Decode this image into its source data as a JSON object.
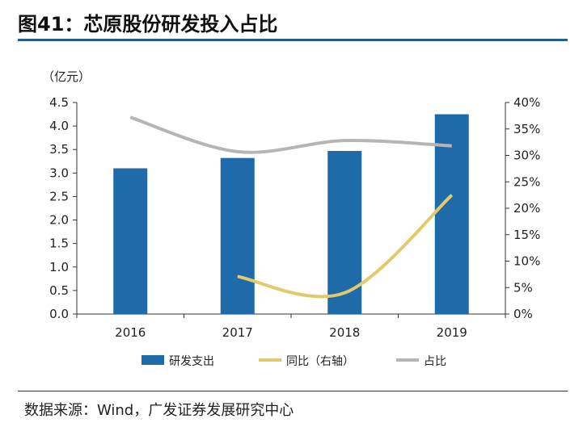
{
  "title": "图41：芯原股份研发投入占比",
  "source": "数据来源：Wind，广发证券发展研究中心",
  "colors": {
    "bar": "#1f6aa8",
    "yoy": "#e2c96a",
    "ratio": "#b5b5b5",
    "title_rule": "#1f5e8f"
  },
  "chart_data": {
    "type": "bar",
    "unit_label": "（亿元）",
    "categories": [
      "2016",
      "2017",
      "2018",
      "2019"
    ],
    "left_axis": {
      "ylim": [
        0,
        4.5
      ],
      "ticks": [
        "0.0",
        "0.5",
        "1.0",
        "1.5",
        "2.0",
        "2.5",
        "3.0",
        "3.5",
        "4.0",
        "4.5"
      ]
    },
    "right_axis": {
      "ylim": [
        0,
        40
      ],
      "ticks": [
        "0%",
        "5%",
        "10%",
        "15%",
        "20%",
        "25%",
        "30%",
        "35%",
        "40%"
      ]
    },
    "series": [
      {
        "name": "研发支出",
        "type": "bar",
        "axis": "left",
        "values": [
          3.1,
          3.32,
          3.47,
          4.25
        ]
      },
      {
        "name": "同比（右轴）",
        "type": "line",
        "axis": "right",
        "values": [
          null,
          7.1,
          4.0,
          22.5
        ]
      },
      {
        "name": "占比",
        "type": "line",
        "axis": "right",
        "values": [
          37.2,
          30.7,
          32.8,
          31.8
        ]
      }
    ],
    "legend_position": "bottom",
    "grid": false
  }
}
